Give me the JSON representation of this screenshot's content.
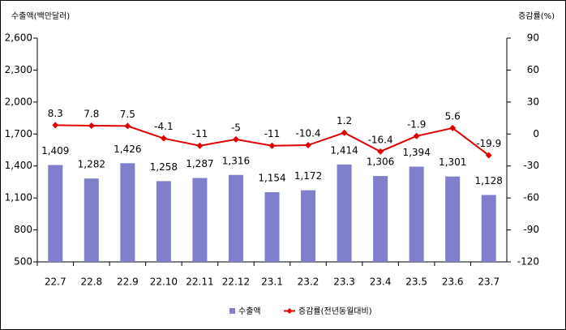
{
  "chart_data": {
    "type": "bar",
    "y_label": "수출액(백만달러)",
    "y2_label": "증감률(%)",
    "categories": [
      "22.7",
      "22.8",
      "22.9",
      "22.10",
      "22.11",
      "22.12",
      "23.1",
      "23.2",
      "23.3",
      "23.4",
      "23.5",
      "23.6",
      "23.7"
    ],
    "series": [
      {
        "name": "수출액",
        "type": "bar",
        "color": "#7f7fcc",
        "values": [
          1409,
          1282,
          1426,
          1258,
          1287,
          1316,
          1154,
          1172,
          1414,
          1306,
          1394,
          1301,
          1128
        ],
        "value_labels": [
          "1,409",
          "1,282",
          "1,426",
          "1,258",
          "1,287",
          "1,316",
          "1,154",
          "1,172",
          "1,414",
          "1,306",
          "1,394",
          "1,301",
          "1,128"
        ]
      },
      {
        "name": "증감률(전년동월대비)",
        "type": "line",
        "axis": "y2",
        "color": "#e00000",
        "values": [
          8.3,
          7.8,
          7.5,
          -4.1,
          -11,
          -5,
          -11,
          -10.4,
          1.2,
          -16.4,
          -1.9,
          5.6,
          -19.9
        ]
      }
    ],
    "ylim": [
      500,
      2600
    ],
    "yticks": [
      500,
      800,
      {
        "value": 1100,
        "label": "1,100"
      },
      {
        "value": 1400,
        "label": "1,400"
      },
      {
        "value": 1700,
        "label": "1,700"
      },
      {
        "value": 2000,
        "label": "2,000"
      },
      {
        "value": 2300,
        "label": "2,300"
      },
      {
        "value": 2600,
        "label": "2,600"
      }
    ],
    "y2lim": [
      -120,
      90
    ],
    "y2ticks": [
      -120,
      -90,
      -60,
      -30,
      0,
      30,
      60,
      90
    ],
    "legend": "bottom"
  }
}
